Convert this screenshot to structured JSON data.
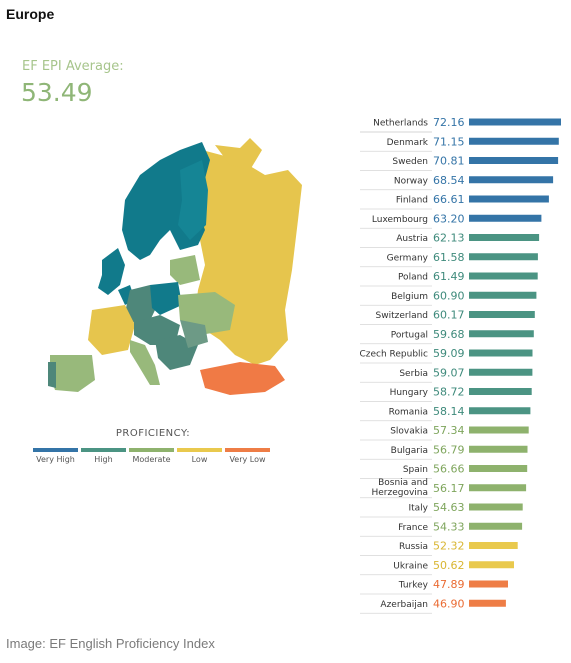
{
  "header": {
    "title": "Europe"
  },
  "average": {
    "label": "EF EPI Average:",
    "value": "53.49"
  },
  "legend": {
    "title": "PROFICIENCY:",
    "items": [
      {
        "label": "Very High",
        "color": "#3474a7"
      },
      {
        "label": "High",
        "color": "#4b9483"
      },
      {
        "label": "Moderate",
        "color": "#8eb26d"
      },
      {
        "label": "Low",
        "color": "#e9c94d"
      },
      {
        "label": "Very Low",
        "color": "#ee7d46"
      }
    ]
  },
  "map": {
    "icon": "europe-map",
    "colors": {
      "very_high": "#117a8b",
      "high": "#4e877a",
      "moderate": "#98b97b",
      "low": "#e6c54d",
      "very_low": "#f07a45"
    }
  },
  "chart_data": {
    "type": "bar",
    "orientation": "horizontal",
    "categories": [
      "Netherlands",
      "Denmark",
      "Sweden",
      "Norway",
      "Finland",
      "Luxembourg",
      "Austria",
      "Germany",
      "Poland",
      "Belgium",
      "Switzerland",
      "Portugal",
      "Czech Republic",
      "Serbia",
      "Hungary",
      "Romania",
      "Slovakia",
      "Bulgaria",
      "Spain",
      "Bosnia and Herzegovina",
      "Italy",
      "France",
      "Russia",
      "Ukraine",
      "Turkey",
      "Azerbaijan"
    ],
    "values": [
      72.16,
      71.15,
      70.81,
      68.54,
      66.61,
      63.2,
      62.13,
      61.58,
      61.49,
      60.9,
      60.17,
      59.68,
      59.09,
      59.07,
      58.72,
      58.14,
      57.34,
      56.79,
      56.66,
      56.17,
      54.63,
      54.33,
      52.32,
      50.62,
      47.89,
      46.9
    ],
    "value_labels": [
      "72.16",
      "71.15",
      "70.81",
      "68.54",
      "66.61",
      "63.20",
      "62.13",
      "61.58",
      "61.49",
      "60.90",
      "60.17",
      "59.68",
      "59.09",
      "59.07",
      "58.72",
      "58.14",
      "57.34",
      "56.79",
      "56.66",
      "56.17",
      "54.63",
      "54.33",
      "52.32",
      "50.62",
      "47.89",
      "46.90"
    ],
    "proficiency": [
      "Very High",
      "Very High",
      "Very High",
      "Very High",
      "Very High",
      "Very High",
      "High",
      "High",
      "High",
      "High",
      "High",
      "High",
      "High",
      "High",
      "High",
      "High",
      "Moderate",
      "Moderate",
      "Moderate",
      "Moderate",
      "Moderate",
      "Moderate",
      "Low",
      "Low",
      "Very Low",
      "Very Low"
    ],
    "grid": false
  },
  "source": "Image: EF English Proficiency Index"
}
